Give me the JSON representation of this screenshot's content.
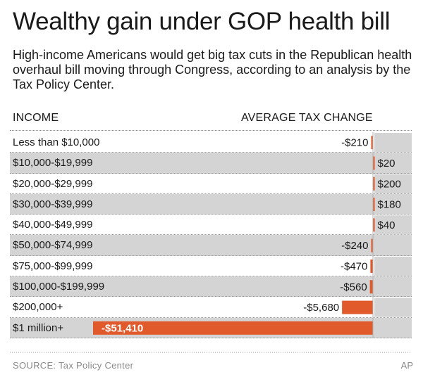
{
  "header": {
    "title": "Wealthy gain under GOP health bill",
    "subtitle": "High-income Americans would get big tax cuts in the Republican health overhaul bill moving through Congress, according to an analysis by the Tax Policy Center.",
    "col_income": "INCOME",
    "col_tax": "AVERAGE TAX CHANGE"
  },
  "footer": {
    "source": "SOURCE: Tax Policy Center",
    "credit": "AP"
  },
  "colors": {
    "bar": "#e05a2b",
    "shade": "#d4d4d4"
  },
  "chart_data": {
    "type": "bar",
    "orientation": "horizontal",
    "categories": [
      "Less than $10,000",
      "$10,000-$19,999",
      "$20,000-$29,999",
      "$30,000-$39,999",
      "$40,000-$49,999",
      "$50,000-$74,999",
      "$75,000-$99,999",
      "$100,000-$199,999",
      "$200,000+",
      "$1 million+"
    ],
    "values": [
      -210,
      20,
      200,
      180,
      40,
      -240,
      -470,
      -560,
      -5680,
      -51410
    ],
    "labels": [
      "-$210",
      "$20",
      "$200",
      "$180",
      "$40",
      "-$240",
      "-$470",
      "-$560",
      "-$5,680",
      "-$51,410"
    ],
    "title": "Wealthy gain under GOP health bill",
    "xlabel": "AVERAGE TAX CHANGE",
    "ylabel": "INCOME",
    "grid": false,
    "legend": "none"
  }
}
